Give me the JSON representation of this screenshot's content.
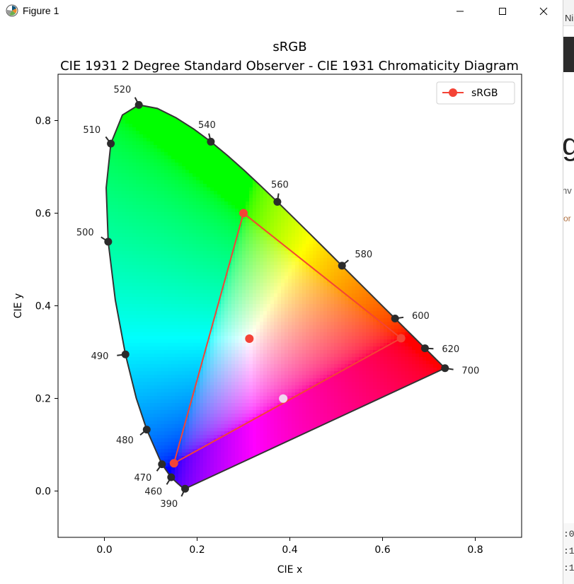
{
  "window": {
    "title": "Figure 1",
    "minimize_glyph": "—",
    "maximize_glyph": "☐",
    "close_glyph": "✕"
  },
  "background_window": {
    "tab_text": "Ni",
    "big_text": "g",
    "line1": "nv",
    "line2": "or",
    "numbers": [
      ":0",
      ":1",
      ":1"
    ]
  },
  "colors": {
    "locus": "#333333",
    "marker": "#2b2b2b",
    "srgb": "#f44336",
    "whitepoint_e": "#f44336",
    "whitepoint_d65": "#f0d8f0"
  },
  "chart_data": {
    "type": "scatter",
    "title": "sRGB",
    "subtitle": "CIE 1931 2 Degree Standard Observer - CIE 1931 Chromaticity Diagram",
    "xlabel": "CIE x",
    "ylabel": "CIE y",
    "xlim": [
      -0.1,
      0.9
    ],
    "ylim": [
      -0.1,
      0.9
    ],
    "xticks": [
      0.0,
      0.2,
      0.4,
      0.6,
      0.8
    ],
    "yticks": [
      0.0,
      0.2,
      0.4,
      0.6,
      0.8
    ],
    "xtick_labels": [
      "0.0",
      "0.2",
      "0.4",
      "0.6",
      "0.8"
    ],
    "ytick_labels": [
      "0.0",
      "0.2",
      "0.4",
      "0.6",
      "0.8"
    ],
    "grid": false,
    "legend_position": "top-right",
    "spectral_locus": [
      [
        0.1741,
        0.005
      ],
      [
        0.1738,
        0.0049
      ],
      [
        0.1733,
        0.0048
      ],
      [
        0.1726,
        0.0048
      ],
      [
        0.1714,
        0.0051
      ],
      [
        0.1689,
        0.0069
      ],
      [
        0.1644,
        0.0109
      ],
      [
        0.1566,
        0.0177
      ],
      [
        0.144,
        0.0297
      ],
      [
        0.1241,
        0.0578
      ],
      [
        0.0913,
        0.1327
      ],
      [
        0.0687,
        0.2007
      ],
      [
        0.0454,
        0.295
      ],
      [
        0.0235,
        0.4127
      ],
      [
        0.0082,
        0.5384
      ],
      [
        0.0039,
        0.6548
      ],
      [
        0.0139,
        0.7502
      ],
      [
        0.0389,
        0.812
      ],
      [
        0.0743,
        0.8338
      ],
      [
        0.1142,
        0.8262
      ],
      [
        0.1547,
        0.8059
      ],
      [
        0.1929,
        0.7816
      ],
      [
        0.2296,
        0.7543
      ],
      [
        0.2658,
        0.7243
      ],
      [
        0.3016,
        0.6923
      ],
      [
        0.3373,
        0.6589
      ],
      [
        0.3731,
        0.6245
      ],
      [
        0.4087,
        0.5896
      ],
      [
        0.4441,
        0.5547
      ],
      [
        0.4788,
        0.5202
      ],
      [
        0.5125,
        0.4866
      ],
      [
        0.5448,
        0.4544
      ],
      [
        0.5752,
        0.4242
      ],
      [
        0.6029,
        0.3965
      ],
      [
        0.627,
        0.3725
      ],
      [
        0.6482,
        0.3514
      ],
      [
        0.6658,
        0.334
      ],
      [
        0.6801,
        0.3197
      ],
      [
        0.6915,
        0.3083
      ],
      [
        0.7006,
        0.2993
      ],
      [
        0.7079,
        0.292
      ],
      [
        0.714,
        0.2859
      ],
      [
        0.719,
        0.2809
      ],
      [
        0.723,
        0.277
      ],
      [
        0.726,
        0.274
      ],
      [
        0.7283,
        0.2717
      ],
      [
        0.73,
        0.27
      ],
      [
        0.7311,
        0.2689
      ],
      [
        0.732,
        0.268
      ],
      [
        0.7327,
        0.2673
      ],
      [
        0.7334,
        0.2666
      ],
      [
        0.734,
        0.266
      ],
      [
        0.7344,
        0.2656
      ],
      [
        0.7346,
        0.2654
      ],
      [
        0.7347,
        0.2653
      ]
    ],
    "wavelength_markers": [
      {
        "label": "390",
        "x": 0.1741,
        "y": 0.005
      },
      {
        "label": "460",
        "x": 0.144,
        "y": 0.0297
      },
      {
        "label": "470",
        "x": 0.1241,
        "y": 0.0578
      },
      {
        "label": "480",
        "x": 0.0913,
        "y": 0.1327
      },
      {
        "label": "490",
        "x": 0.0454,
        "y": 0.295
      },
      {
        "label": "500",
        "x": 0.0082,
        "y": 0.5384
      },
      {
        "label": "510",
        "x": 0.0139,
        "y": 0.7502
      },
      {
        "label": "520",
        "x": 0.0743,
        "y": 0.8338
      },
      {
        "label": "540",
        "x": 0.2296,
        "y": 0.7543
      },
      {
        "label": "560",
        "x": 0.3731,
        "y": 0.6245
      },
      {
        "label": "580",
        "x": 0.5125,
        "y": 0.4866
      },
      {
        "label": "600",
        "x": 0.627,
        "y": 0.3725
      },
      {
        "label": "620",
        "x": 0.6915,
        "y": 0.3083
      },
      {
        "label": "700",
        "x": 0.7347,
        "y": 0.2653
      }
    ],
    "series": [
      {
        "name": "sRGB",
        "type": "line",
        "points": [
          [
            0.64,
            0.33
          ],
          [
            0.3,
            0.6
          ],
          [
            0.15,
            0.06
          ],
          [
            0.64,
            0.33
          ]
        ]
      }
    ],
    "whitepoints": [
      {
        "x": 0.3127,
        "y": 0.329
      },
      {
        "x": 0.3857,
        "y": 0.1997
      }
    ],
    "legend": [
      {
        "label": "sRGB"
      }
    ]
  }
}
